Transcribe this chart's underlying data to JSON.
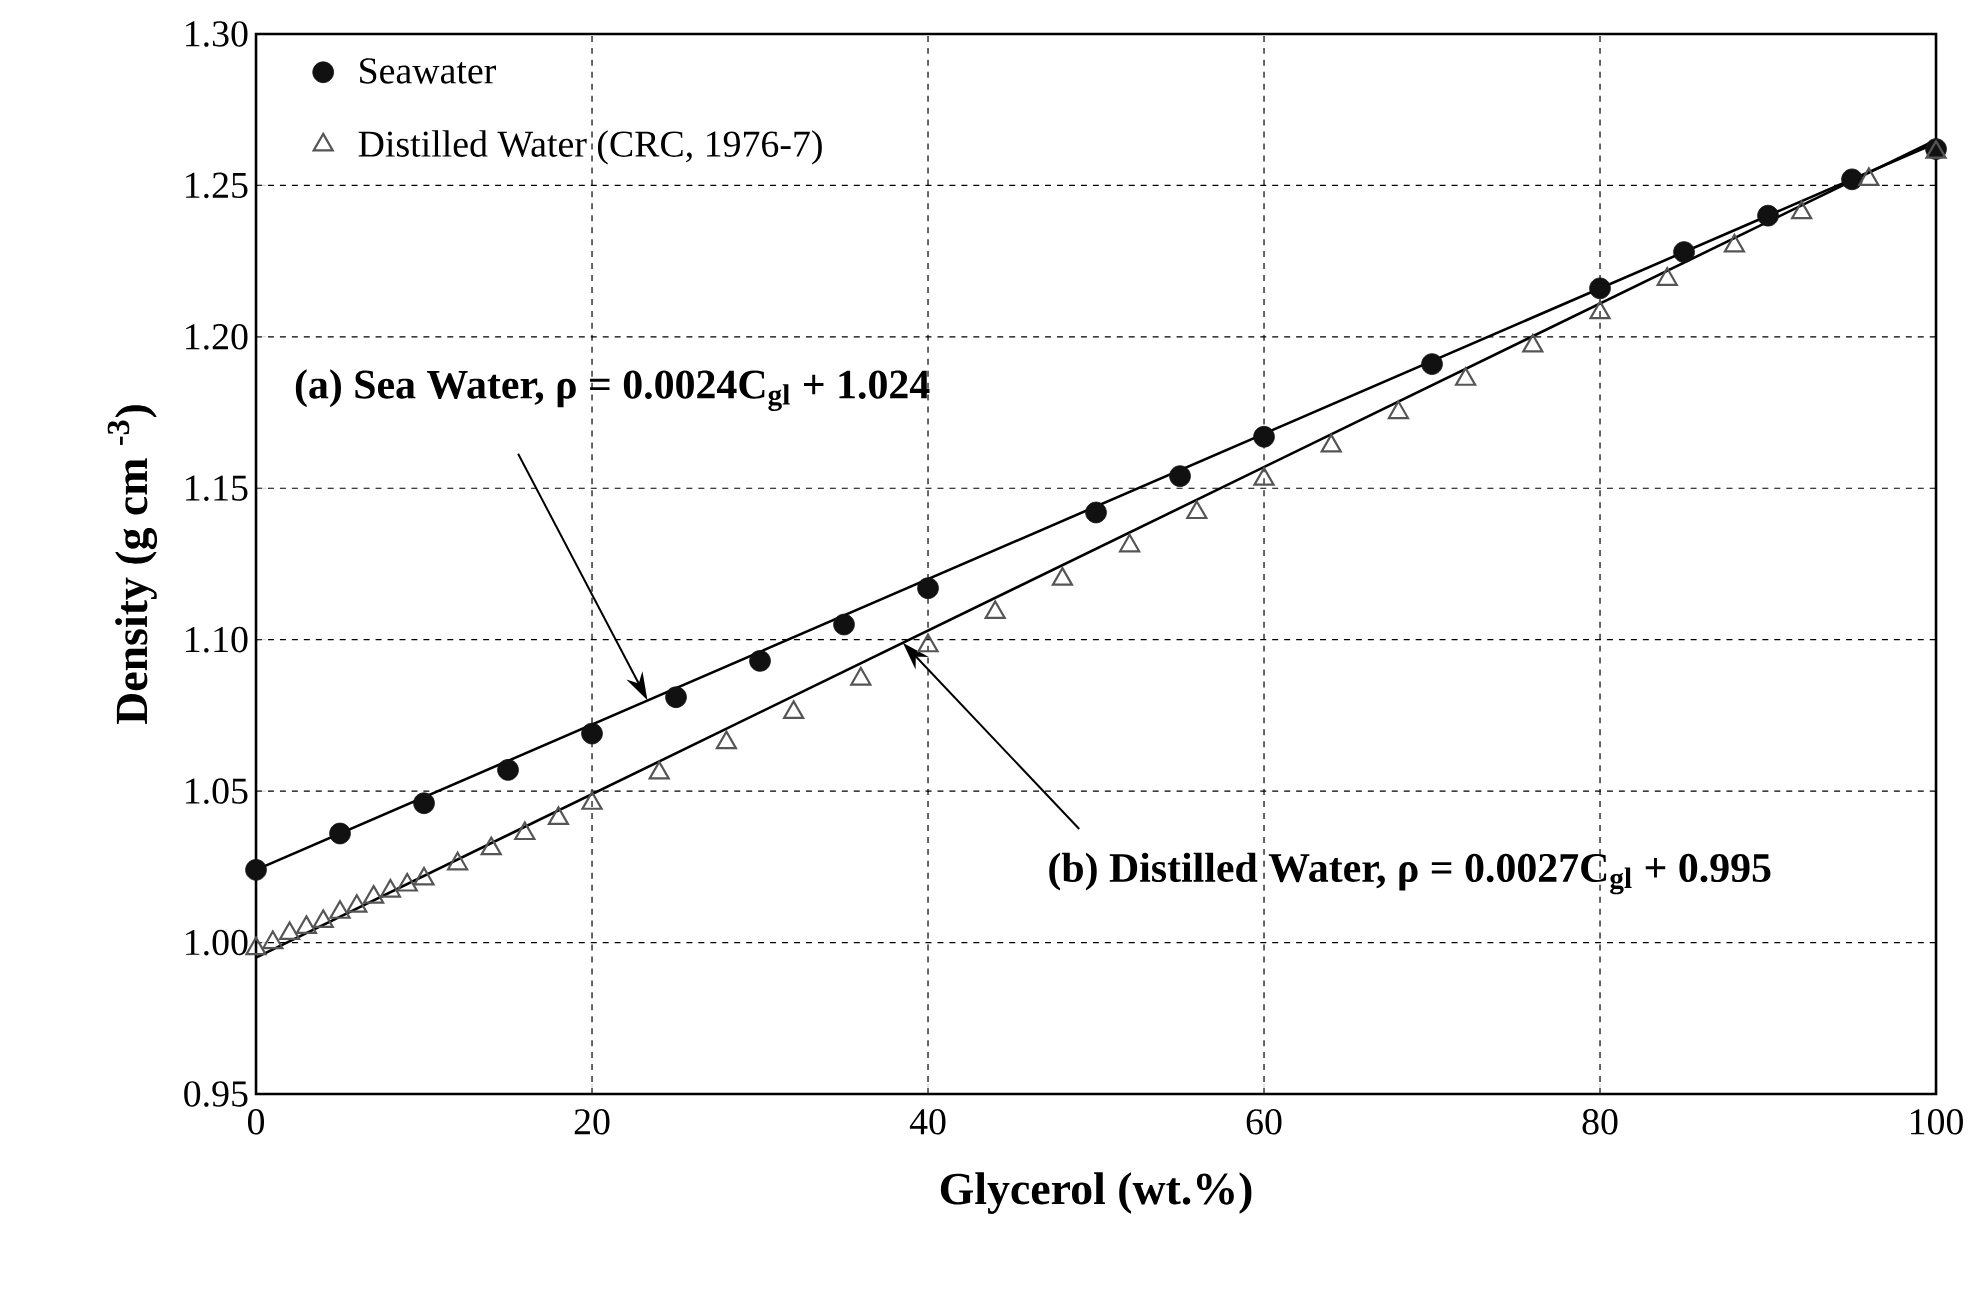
{
  "chart_data": {
    "type": "scatter",
    "xlabel": "Glycerol (wt.%)",
    "ylabel": "Density (g cm $^{-3}$)",
    "xlim": [
      0,
      100
    ],
    "ylim": [
      0.95,
      1.3
    ],
    "xticks": [
      0,
      20,
      40,
      60,
      80,
      100
    ],
    "yticks": [
      {
        "value": 0.95,
        "label": "0.95"
      },
      {
        "value": 1.0,
        "label": "1.00"
      },
      {
        "value": 1.05,
        "label": "1.05"
      },
      {
        "value": 1.1,
        "label": "1.10"
      },
      {
        "value": 1.15,
        "label": "1.15"
      },
      {
        "value": 1.2,
        "label": "1.20"
      },
      {
        "value": 1.25,
        "label": "1.25"
      },
      {
        "value": 1.3,
        "label": "1.30"
      }
    ],
    "grid": true,
    "legend": "top left",
    "series": [
      {
        "name": "Seawater",
        "marker": "circle",
        "color": "#111111",
        "x": [
          0,
          5,
          10,
          15,
          20,
          25,
          30,
          35,
          40,
          50,
          55,
          60,
          70,
          80,
          85,
          90,
          95,
          100
        ],
        "values": [
          1.024,
          1.036,
          1.046,
          1.057,
          1.069,
          1.081,
          1.093,
          1.105,
          1.117,
          1.142,
          1.154,
          1.167,
          1.191,
          1.216,
          1.228,
          1.24,
          1.252,
          1.262
        ]
      },
      {
        "name": "Distilled Water (CRC, 1976-7)",
        "marker": "triangle",
        "color": "#555555",
        "x": [
          0,
          1,
          2,
          3,
          4,
          5,
          6,
          7,
          8,
          9,
          10,
          12,
          14,
          16,
          18,
          20,
          24,
          28,
          32,
          36,
          40,
          44,
          48,
          52,
          56,
          60,
          64,
          68,
          72,
          76,
          80,
          84,
          88,
          92,
          96,
          100
        ],
        "values": [
          0.998,
          1.0,
          1.003,
          1.005,
          1.007,
          1.01,
          1.012,
          1.015,
          1.017,
          1.019,
          1.021,
          1.026,
          1.031,
          1.036,
          1.041,
          1.046,
          1.056,
          1.066,
          1.076,
          1.087,
          1.098,
          1.109,
          1.12,
          1.131,
          1.142,
          1.153,
          1.164,
          1.175,
          1.186,
          1.197,
          1.208,
          1.219,
          1.23,
          1.241,
          1.252,
          1.261
        ]
      },
      {
        "type": "line",
        "color": "#000000",
        "x": [
          0,
          100
        ],
        "values": [
          1.024,
          1.264
        ]
      },
      {
        "type": "line",
        "color": "#000000",
        "x": [
          0,
          100
        ],
        "values": [
          0.995,
          1.265
        ]
      }
    ],
    "annotations": [
      {
        "text": "(a)  Sea Water, ρ = 0.0024C$_{gl}$ + 1.024",
        "x": 23.3,
        "y": 1.08
      },
      {
        "text": "(b)  Distilled Water, ρ = 0.0027C$_{gl}$  + 0.995",
        "x": 38.5,
        "y": 1.099
      }
    ]
  }
}
